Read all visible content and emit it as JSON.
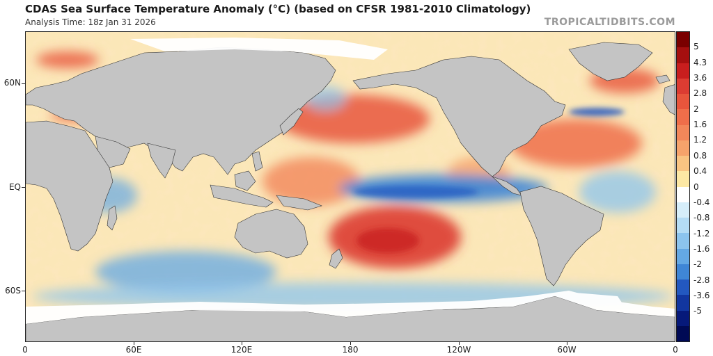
{
  "header": {
    "title": "CDAS Sea Surface Temperature Anomaly (°C) (based on CFSR 1981-2010 Climatology)",
    "analysis_time": "Analysis Time: 18z Jan 31 2026",
    "watermark": "TROPICALTIDBITS.COM"
  },
  "map": {
    "projection": "equirectangular",
    "lon_range": [
      0,
      360
    ],
    "lat_range": [
      -90,
      90
    ],
    "lat_labels": [
      {
        "label": "60N",
        "lat": 60
      },
      {
        "label": "EQ",
        "lat": 0
      },
      {
        "label": "60S",
        "lat": -60
      }
    ],
    "lon_labels": [
      {
        "label": "0",
        "lon": 0
      },
      {
        "label": "60E",
        "lon": 60
      },
      {
        "label": "120E",
        "lon": 120
      },
      {
        "label": "180",
        "lon": 180
      },
      {
        "label": "120W",
        "lon": 240
      },
      {
        "label": "60W",
        "lon": 300
      },
      {
        "label": "0",
        "lon": 360
      }
    ],
    "land_color": "#c4c4c4",
    "sea_ice_color": "#ffffff",
    "features": [
      {
        "name": "el-nino-cool-tongue",
        "desc": "Cold anomaly along central/eastern equatorial Pacific"
      },
      {
        "name": "south-pacific-warm-anomaly",
        "desc": "Strong warm anomaly east of New Zealand"
      },
      {
        "name": "north-pacific-warm-anomaly",
        "desc": "Warm anomaly east of Japan"
      },
      {
        "name": "north-atlantic-warm-anomaly",
        "desc": "Warm anomaly in western North Atlantic"
      }
    ]
  },
  "colorbar": {
    "unit": "°C",
    "labels": [
      "5",
      "4.3",
      "3.6",
      "2.8",
      "2",
      "1.6",
      "1.2",
      "0.8",
      "0.4",
      "0",
      "-0.4",
      "-0.8",
      "-1.2",
      "-1.6",
      "-2",
      "-2.8",
      "-3.6",
      "-5"
    ],
    "colors": [
      "#7a0000",
      "#a50f0f",
      "#c81e1e",
      "#dc3c32",
      "#e8553c",
      "#ef6e4a",
      "#f3875a",
      "#f6a36b",
      "#f9c482",
      "#fde8a4",
      "#ffffff",
      "#d6eefa",
      "#b4dcf5",
      "#8cc4ee",
      "#64a8e4",
      "#3f86d6",
      "#2358c0",
      "#1236a0",
      "#06197a",
      "#000a55"
    ]
  }
}
